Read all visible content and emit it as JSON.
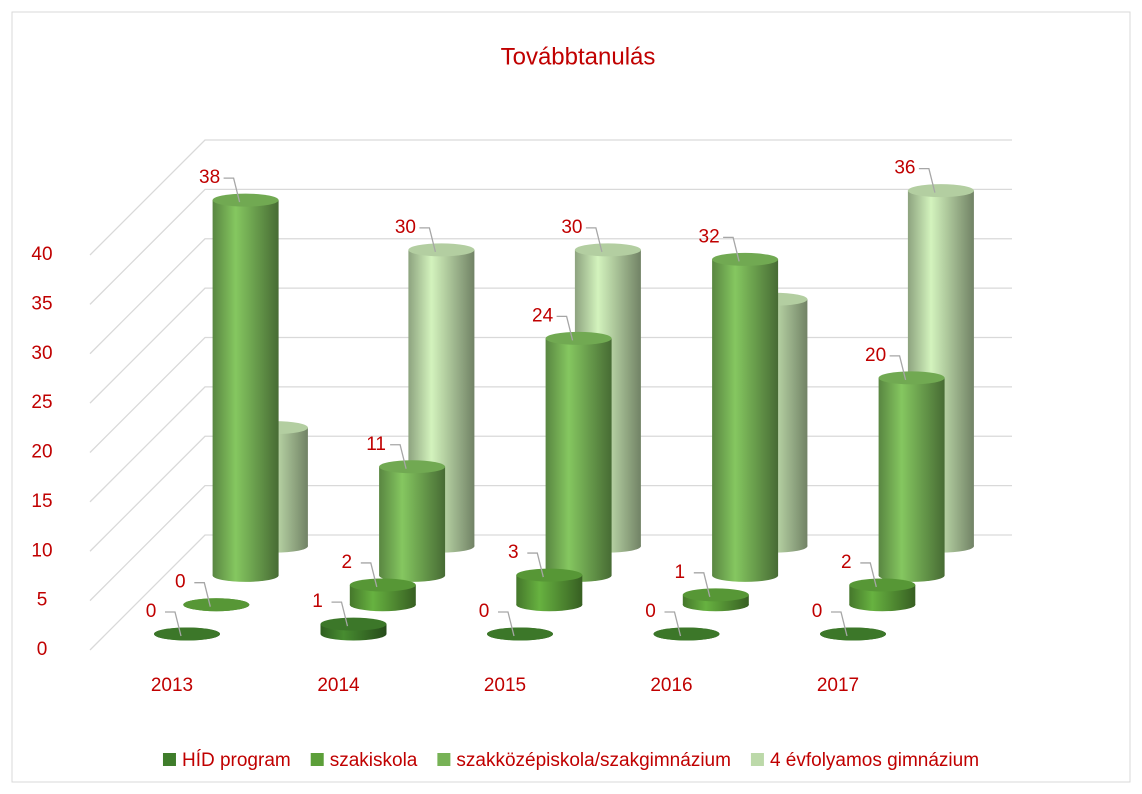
{
  "chart_data": {
    "type": "bar3d",
    "title": "Továbbtanulás",
    "categories": [
      "2013",
      "2014",
      "2015",
      "2016",
      "2017"
    ],
    "series": [
      {
        "name": "HÍD program",
        "color": "#3f7d2b",
        "values": [
          0,
          1,
          0,
          0,
          0
        ]
      },
      {
        "name": "szakiskola",
        "color": "#5c9f39",
        "values": [
          0,
          2,
          3,
          1,
          2
        ]
      },
      {
        "name": "szakközépiskola/szakgimnázium",
        "color": "#77b256",
        "values": [
          38,
          11,
          24,
          32,
          20
        ]
      },
      {
        "name": "4 évfolyamos gimnázium",
        "color": "#bcd9a9",
        "values": [
          12,
          30,
          30,
          25,
          36
        ]
      }
    ],
    "ylim": [
      0,
      40
    ],
    "yticks": [
      0,
      5,
      10,
      15,
      20,
      25,
      30,
      35,
      40
    ],
    "grid": true,
    "legend": "bottom"
  }
}
